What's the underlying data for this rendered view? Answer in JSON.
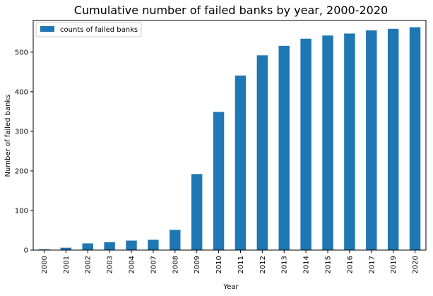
{
  "chart_data": {
    "type": "bar",
    "title": "Cumulative number of failed banks by year, 2000-2020",
    "xlabel": "Year",
    "ylabel": "Number of failed banks",
    "categories": [
      "2000",
      "2001",
      "2002",
      "2003",
      "2004",
      "2007",
      "2008",
      "2009",
      "2010",
      "2011",
      "2012",
      "2013",
      "2014",
      "2015",
      "2016",
      "2017",
      "2019",
      "2020"
    ],
    "series": [
      {
        "name": "counts of failed banks",
        "color": "#1f77b4",
        "values": [
          2,
          6,
          17,
          20,
          24,
          26,
          51,
          192,
          349,
          441,
          492,
          516,
          534,
          542,
          547,
          555,
          559,
          563
        ]
      }
    ],
    "ylim": [
      0,
      580
    ],
    "yticks": [
      0,
      100,
      200,
      300,
      400,
      500
    ],
    "legend": "top-left",
    "grid": false
  }
}
